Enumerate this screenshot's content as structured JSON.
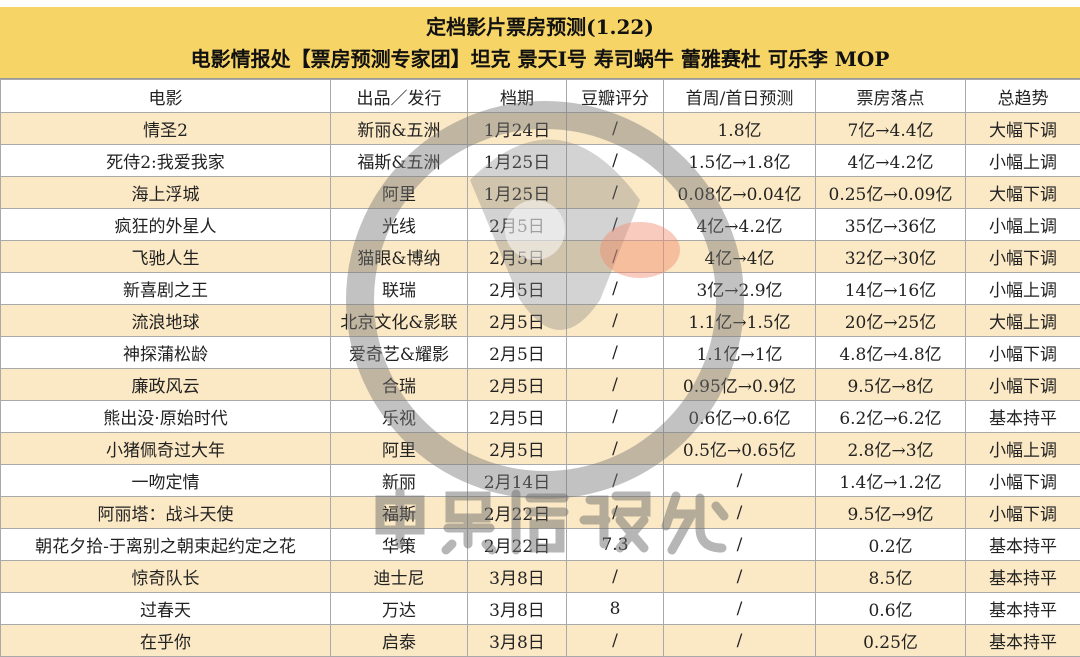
{
  "title": {
    "line1": "定档影片票房预测(1.22)",
    "line2": "电影情报处【票房预测专家团】坦克 景天I号 寿司蜗牛 蕾雅赛杜 可乐李 MOP"
  },
  "columns": [
    "电影",
    "出品／发行",
    "档期",
    "豆瓣评分",
    "首周/首日预测",
    "票房落点",
    "总趋势"
  ],
  "rows": [
    [
      "情圣2",
      "新丽&五洲",
      "1月24日",
      "/",
      "1.8亿",
      "7亿→4.4亿",
      "大幅下调"
    ],
    [
      "死侍2:我爱我家",
      "福斯&五洲",
      "1月25日",
      "/",
      "1.5亿→1.8亿",
      "4亿→4.2亿",
      "小幅上调"
    ],
    [
      "海上浮城",
      "阿里",
      "1月25日",
      "/",
      "0.08亿→0.04亿",
      "0.25亿→0.09亿",
      "大幅下调"
    ],
    [
      "疯狂的外星人",
      "光线",
      "2月5日",
      "/",
      "4亿→4.2亿",
      "35亿→36亿",
      "小幅上调"
    ],
    [
      "飞驰人生",
      "猫眼&博纳",
      "2月5日",
      "/",
      "4亿→4亿",
      "32亿→30亿",
      "小幅下调"
    ],
    [
      "新喜剧之王",
      "联瑞",
      "2月5日",
      "/",
      "3亿→2.9亿",
      "14亿→16亿",
      "小幅上调"
    ],
    [
      "流浪地球",
      "北京文化&影联",
      "2月5日",
      "/",
      "1.1亿→1.5亿",
      "20亿→25亿",
      "大幅上调"
    ],
    [
      "神探蒲松龄",
      "爱奇艺&耀影",
      "2月5日",
      "/",
      "1.1亿→1亿",
      "4.8亿→4.8亿",
      "小幅下调"
    ],
    [
      "廉政风云",
      "合瑞",
      "2月5日",
      "/",
      "0.95亿→0.9亿",
      "9.5亿→8亿",
      "小幅下调"
    ],
    [
      "熊出没·原始时代",
      "乐视",
      "2月5日",
      "/",
      "0.6亿→0.6亿",
      "6.2亿→6.2亿",
      "基本持平"
    ],
    [
      "小猪佩奇过大年",
      "阿里",
      "2月5日",
      "/",
      "0.5亿→0.65亿",
      "2.8亿→3亿",
      "小幅上调"
    ],
    [
      "一吻定情",
      "新丽",
      "2月14日",
      "/",
      "/",
      "1.4亿→1.2亿",
      "小幅下调"
    ],
    [
      "阿丽塔：战斗天使",
      "福斯",
      "2月22日",
      "/",
      "/",
      "9.5亿→9亿",
      "小幅下调"
    ],
    [
      "朝花夕拾-于离别之朝束起约定之花",
      "华策",
      "2月22日",
      "7.3",
      "/",
      "0.2亿",
      "基本持平"
    ],
    [
      "惊奇队长",
      "迪士尼",
      "3月8日",
      "/",
      "/",
      "8.5亿",
      "基本持平"
    ],
    [
      "过春天",
      "万达",
      "3月8日",
      "8",
      "/",
      "0.6亿",
      "基本持平"
    ],
    [
      "在乎你",
      "启泰",
      "3月8日",
      "/",
      "/",
      "0.25亿",
      "基本持平"
    ]
  ],
  "watermark": {
    "text": "电影情报处",
    "icon": "bird-logo-icon"
  },
  "colors": {
    "title_bg": "#f6d466",
    "row_alt": "#fbe8c4",
    "border": "#a9a9a9"
  }
}
